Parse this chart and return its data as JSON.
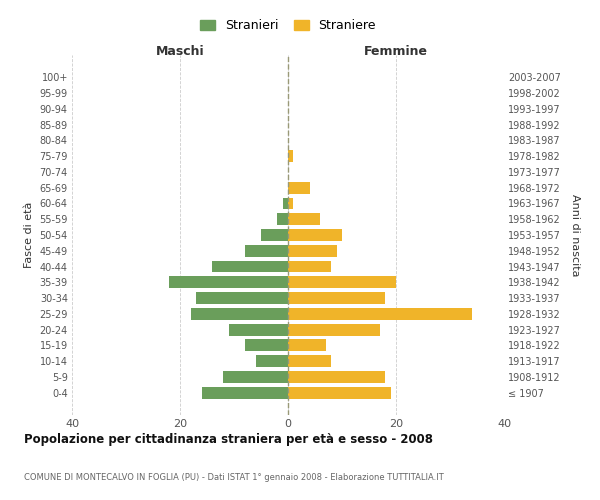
{
  "age_groups": [
    "100+",
    "95-99",
    "90-94",
    "85-89",
    "80-84",
    "75-79",
    "70-74",
    "65-69",
    "60-64",
    "55-59",
    "50-54",
    "45-49",
    "40-44",
    "35-39",
    "30-34",
    "25-29",
    "20-24",
    "15-19",
    "10-14",
    "5-9",
    "0-4"
  ],
  "birth_years": [
    "≤ 1907",
    "1908-1912",
    "1913-1917",
    "1918-1922",
    "1923-1927",
    "1928-1932",
    "1933-1937",
    "1938-1942",
    "1943-1947",
    "1948-1952",
    "1953-1957",
    "1958-1962",
    "1963-1967",
    "1968-1972",
    "1973-1977",
    "1978-1982",
    "1983-1987",
    "1988-1992",
    "1993-1997",
    "1998-2002",
    "2003-2007"
  ],
  "maschi": [
    0,
    0,
    0,
    0,
    0,
    0,
    0,
    0,
    1,
    2,
    5,
    8,
    14,
    22,
    17,
    18,
    11,
    8,
    6,
    12,
    16
  ],
  "femmine": [
    0,
    0,
    0,
    0,
    0,
    1,
    0,
    4,
    1,
    6,
    10,
    9,
    8,
    20,
    18,
    34,
    17,
    7,
    8,
    18,
    19
  ],
  "maschi_color": "#6a9e5b",
  "femmine_color": "#f0b429",
  "background_color": "#ffffff",
  "grid_color": "#cccccc",
  "title": "Popolazione per cittadinanza straniera per età e sesso - 2008",
  "subtitle": "COMUNE DI MONTECALVO IN FOGLIA (PU) - Dati ISTAT 1° gennaio 2008 - Elaborazione TUTTITALIA.IT",
  "ylabel_left": "Fasce di età",
  "ylabel_right": "Anni di nascita",
  "xlabel_left": "Maschi",
  "xlabel_right": "Femmine",
  "legend_maschi": "Stranieri",
  "legend_femmine": "Straniere",
  "xlim": 40,
  "bar_height": 0.75
}
